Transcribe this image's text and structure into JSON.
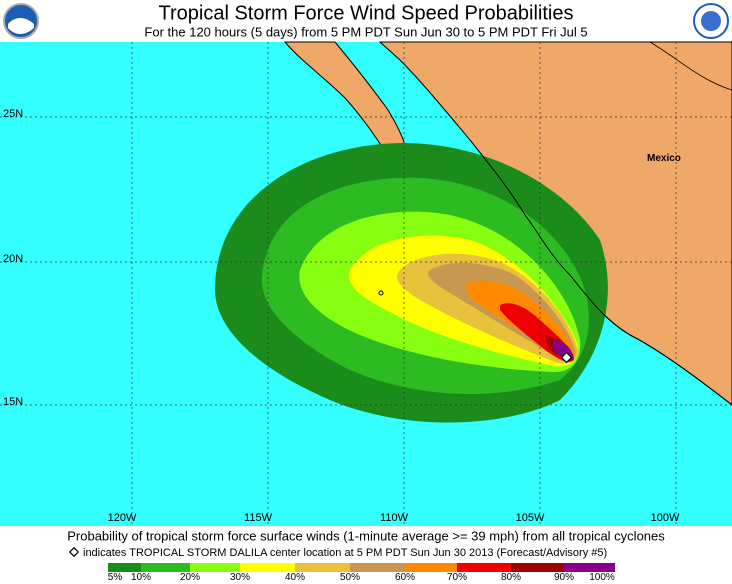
{
  "header": {
    "title": "Tropical Storm Force Wind Speed Probabilities",
    "subtitle": "For the 120 hours (5 days) from 5 PM PDT Sun Jun 30 to 5 PM PDT Fri Jul 5"
  },
  "map": {
    "lat_labels": [
      "25N",
      "20N",
      "15N"
    ],
    "lon_labels": [
      "120W",
      "115W",
      "110W",
      "105W",
      "100W"
    ],
    "place_labels": [
      "Mexico"
    ]
  },
  "caption": {
    "line1": "Probability of tropical storm force surface winds (1-minute average >= 39 mph) from all tropical cyclones",
    "line2": "indicates TROPICAL STORM DALILA center location at 5 PM PDT Sun Jun 30 2013 (Forecast/Advisory #5)"
  },
  "legend": {
    "labels": [
      "5%",
      "10%",
      "20%",
      "30%",
      "40%",
      "50%",
      "60%",
      "70%",
      "80%",
      "90%",
      "100%"
    ],
    "colors": [
      "#1b8c1b",
      "#2dbb22",
      "#88ff11",
      "#ffff00",
      "#e8c23a",
      "#c89850",
      "#ff8a00",
      "#ee0000",
      "#a00000",
      "#880088"
    ]
  }
}
